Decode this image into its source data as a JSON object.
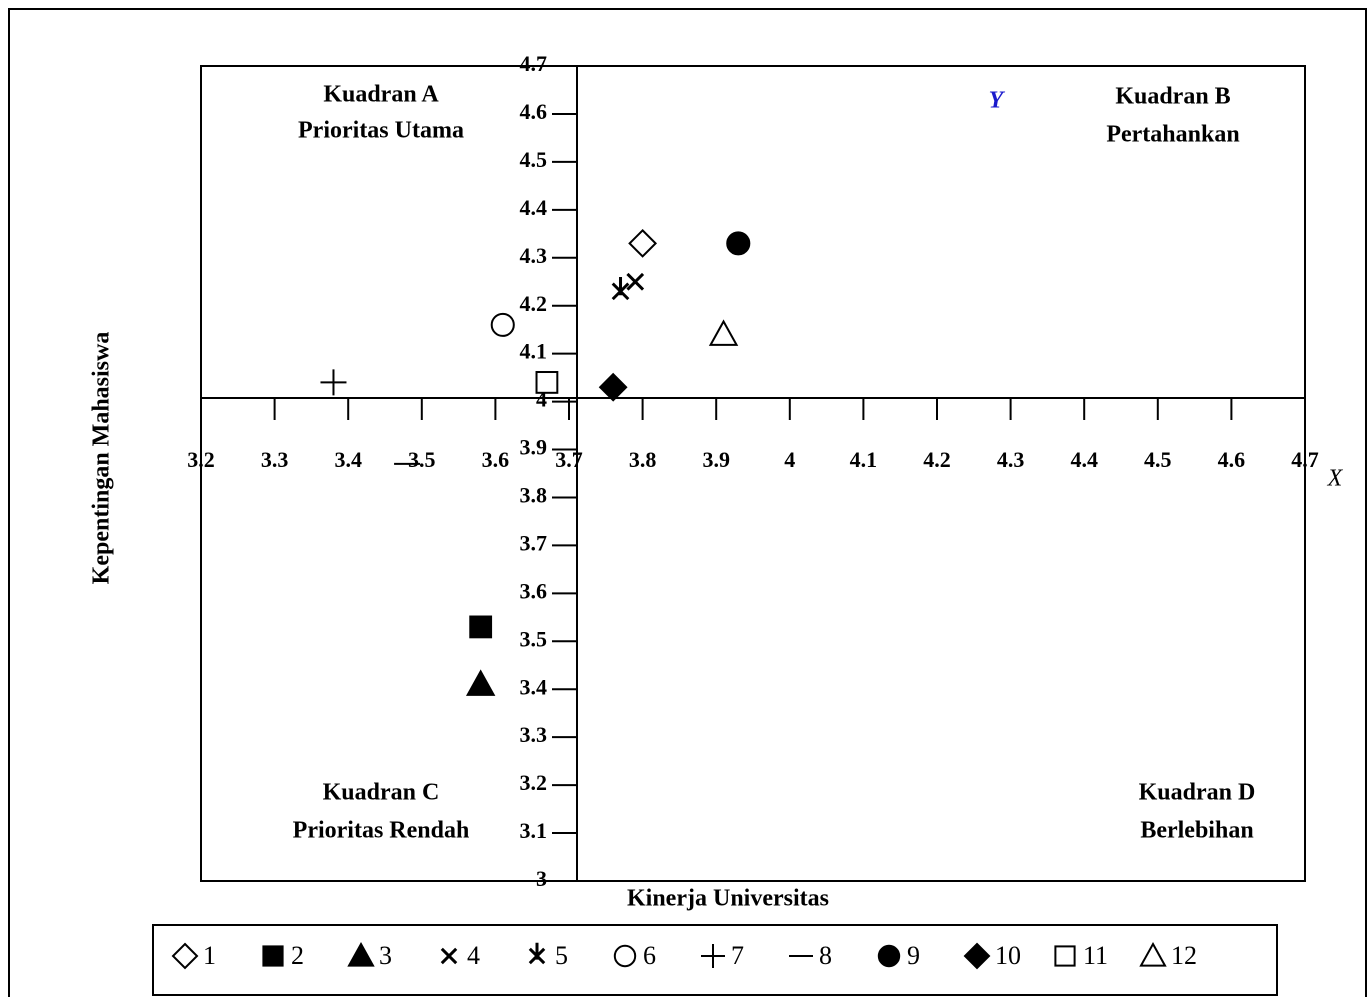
{
  "chart_data": {
    "type": "scatter",
    "x_label": "Kinerja Universitas",
    "y_label": "Kepentingan Mahasiswa",
    "x_axis_name": "X",
    "y_axis_name": "Y",
    "xlim": [
      3.2,
      4.7
    ],
    "xticks": [
      3.2,
      3.3,
      3.4,
      3.5,
      3.6,
      3.7,
      3.8,
      3.9,
      4,
      4.1,
      4.2,
      4.3,
      4.4,
      4.5,
      4.6,
      4.7
    ],
    "ylim": [
      3,
      4.7
    ],
    "yticks": [
      3,
      3.1,
      3.2,
      3.3,
      3.4,
      3.5,
      3.6,
      3.7,
      3.8,
      3.9,
      4,
      4.1,
      4.2,
      4.3,
      4.4,
      4.5,
      4.6,
      4.7
    ],
    "quadrants": [
      {
        "title": "Kuadran A",
        "subtitle": "Prioritas Utama"
      },
      {
        "title": "Kuadran B",
        "subtitle": "Pertahankan"
      },
      {
        "title": "Kuadran C",
        "subtitle": "Prioritas Rendah"
      },
      {
        "title": "Kuadran D",
        "subtitle": "Berlebihan"
      }
    ],
    "series": [
      {
        "name": "1",
        "marker": "diamond-open",
        "x": [
          3.8
        ],
        "values": [
          4.33
        ]
      },
      {
        "name": "2",
        "marker": "square-filled",
        "x": [
          3.58
        ],
        "values": [
          3.53
        ]
      },
      {
        "name": "3",
        "marker": "triangle-filled",
        "x": [
          3.58
        ],
        "values": [
          3.41
        ]
      },
      {
        "name": "4",
        "marker": "x",
        "x": [
          3.79
        ],
        "values": [
          4.25
        ]
      },
      {
        "name": "5",
        "marker": "x-bar",
        "x": [
          3.77
        ],
        "values": [
          4.23
        ]
      },
      {
        "name": "6",
        "marker": "circle-open",
        "x": [
          3.61
        ],
        "values": [
          4.16
        ]
      },
      {
        "name": "7",
        "marker": "plus",
        "x": [
          3.38
        ],
        "values": [
          4.04
        ]
      },
      {
        "name": "8",
        "marker": "dash",
        "x": [
          3.48
        ],
        "values": [
          3.87
        ]
      },
      {
        "name": "9",
        "marker": "circle-filled",
        "x": [
          3.93
        ],
        "values": [
          4.33
        ]
      },
      {
        "name": "10",
        "marker": "diamond-filled",
        "x": [
          3.76
        ],
        "values": [
          4.03
        ]
      },
      {
        "name": "11",
        "marker": "square-open",
        "x": [
          3.67
        ],
        "values": [
          4.04
        ]
      },
      {
        "name": "12",
        "marker": "triangle-open",
        "x": [
          3.91
        ],
        "values": [
          4.14
        ]
      }
    ]
  }
}
